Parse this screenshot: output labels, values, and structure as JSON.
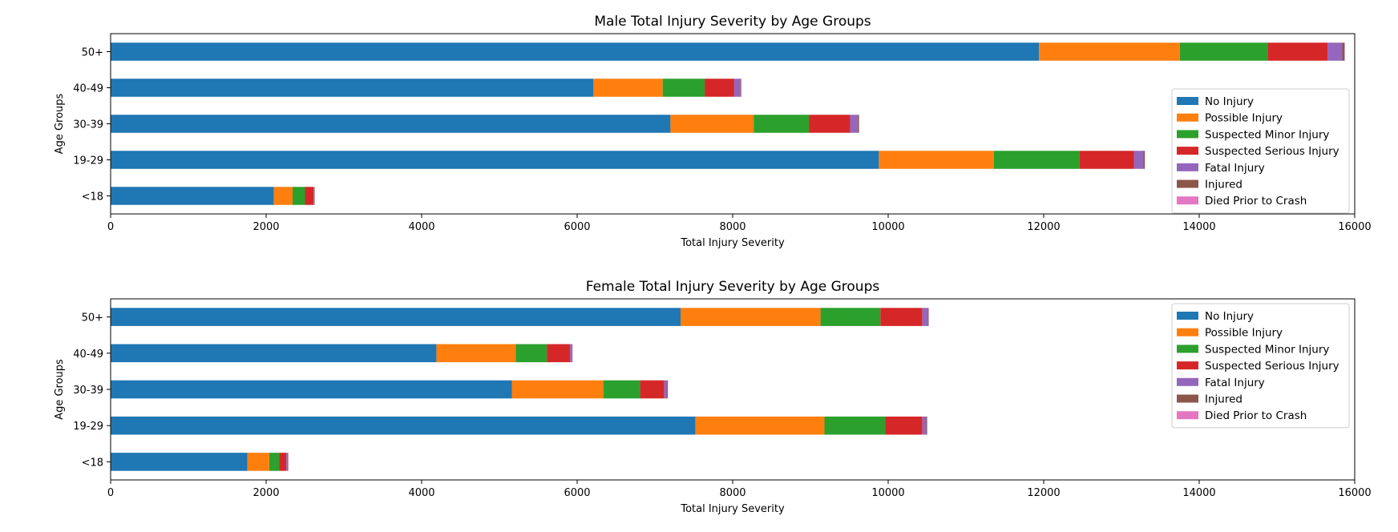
{
  "chart_data": [
    {
      "type": "bar",
      "orientation": "horizontal",
      "stacked": true,
      "title": "Male Total Injury Severity by Age Groups",
      "xlabel": "Total Injury Severity",
      "ylabel": "Age Groups",
      "xlim": [
        0,
        16000
      ],
      "xticks": [
        0,
        2000,
        4000,
        6000,
        8000,
        10000,
        12000,
        14000,
        16000
      ],
      "categories": [
        "<18",
        "19-29",
        "30-39",
        "40-49",
        "50+"
      ],
      "grid": false,
      "legend_position": "right",
      "series": [
        {
          "name": "No Injury",
          "color": "#1f77b4",
          "values": [
            2100,
            9880,
            7200,
            6210,
            11940
          ]
        },
        {
          "name": "Possible Injury",
          "color": "#ff7f0e",
          "values": [
            240,
            1480,
            1070,
            890,
            1810
          ]
        },
        {
          "name": "Suspected Minor Injury",
          "color": "#2ca02c",
          "values": [
            160,
            1100,
            710,
            540,
            1130
          ]
        },
        {
          "name": "Suspected Serious Injury",
          "color": "#d62728",
          "values": [
            110,
            700,
            530,
            380,
            770
          ]
        },
        {
          "name": "Fatal Injury",
          "color": "#9467bd",
          "values": [
            10,
            120,
            100,
            80,
            190
          ]
        },
        {
          "name": "Injured",
          "color": "#8c564b",
          "values": [
            5,
            20,
            15,
            10,
            30
          ]
        },
        {
          "name": "Died Prior to Crash",
          "color": "#e377c2",
          "values": [
            0,
            2,
            2,
            1,
            3
          ]
        }
      ]
    },
    {
      "type": "bar",
      "orientation": "horizontal",
      "stacked": true,
      "title": "Female Total Injury Severity by Age Groups",
      "xlabel": "Total Injury Severity",
      "ylabel": "Age Groups",
      "xlim": [
        0,
        16000
      ],
      "xticks": [
        0,
        2000,
        4000,
        6000,
        8000,
        10000,
        12000,
        14000,
        16000
      ],
      "categories": [
        "<18",
        "19-29",
        "30-39",
        "40-49",
        "50+"
      ],
      "grid": false,
      "legend_position": "top-right",
      "series": [
        {
          "name": "No Injury",
          "color": "#1f77b4",
          "values": [
            1760,
            7520,
            5160,
            4190,
            7330
          ]
        },
        {
          "name": "Possible Injury",
          "color": "#ff7f0e",
          "values": [
            280,
            1660,
            1180,
            1020,
            1800
          ]
        },
        {
          "name": "Suspected Minor Injury",
          "color": "#2ca02c",
          "values": [
            130,
            780,
            470,
            400,
            770
          ]
        },
        {
          "name": "Suspected Serious Injury",
          "color": "#d62728",
          "values": [
            90,
            480,
            310,
            300,
            540
          ]
        },
        {
          "name": "Fatal Injury",
          "color": "#9467bd",
          "values": [
            20,
            50,
            35,
            25,
            70
          ]
        },
        {
          "name": "Injured",
          "color": "#8c564b",
          "values": [
            5,
            10,
            10,
            5,
            10
          ]
        },
        {
          "name": "Died Prior to Crash",
          "color": "#e377c2",
          "values": [
            2,
            2,
            2,
            1,
            2
          ]
        }
      ]
    }
  ]
}
